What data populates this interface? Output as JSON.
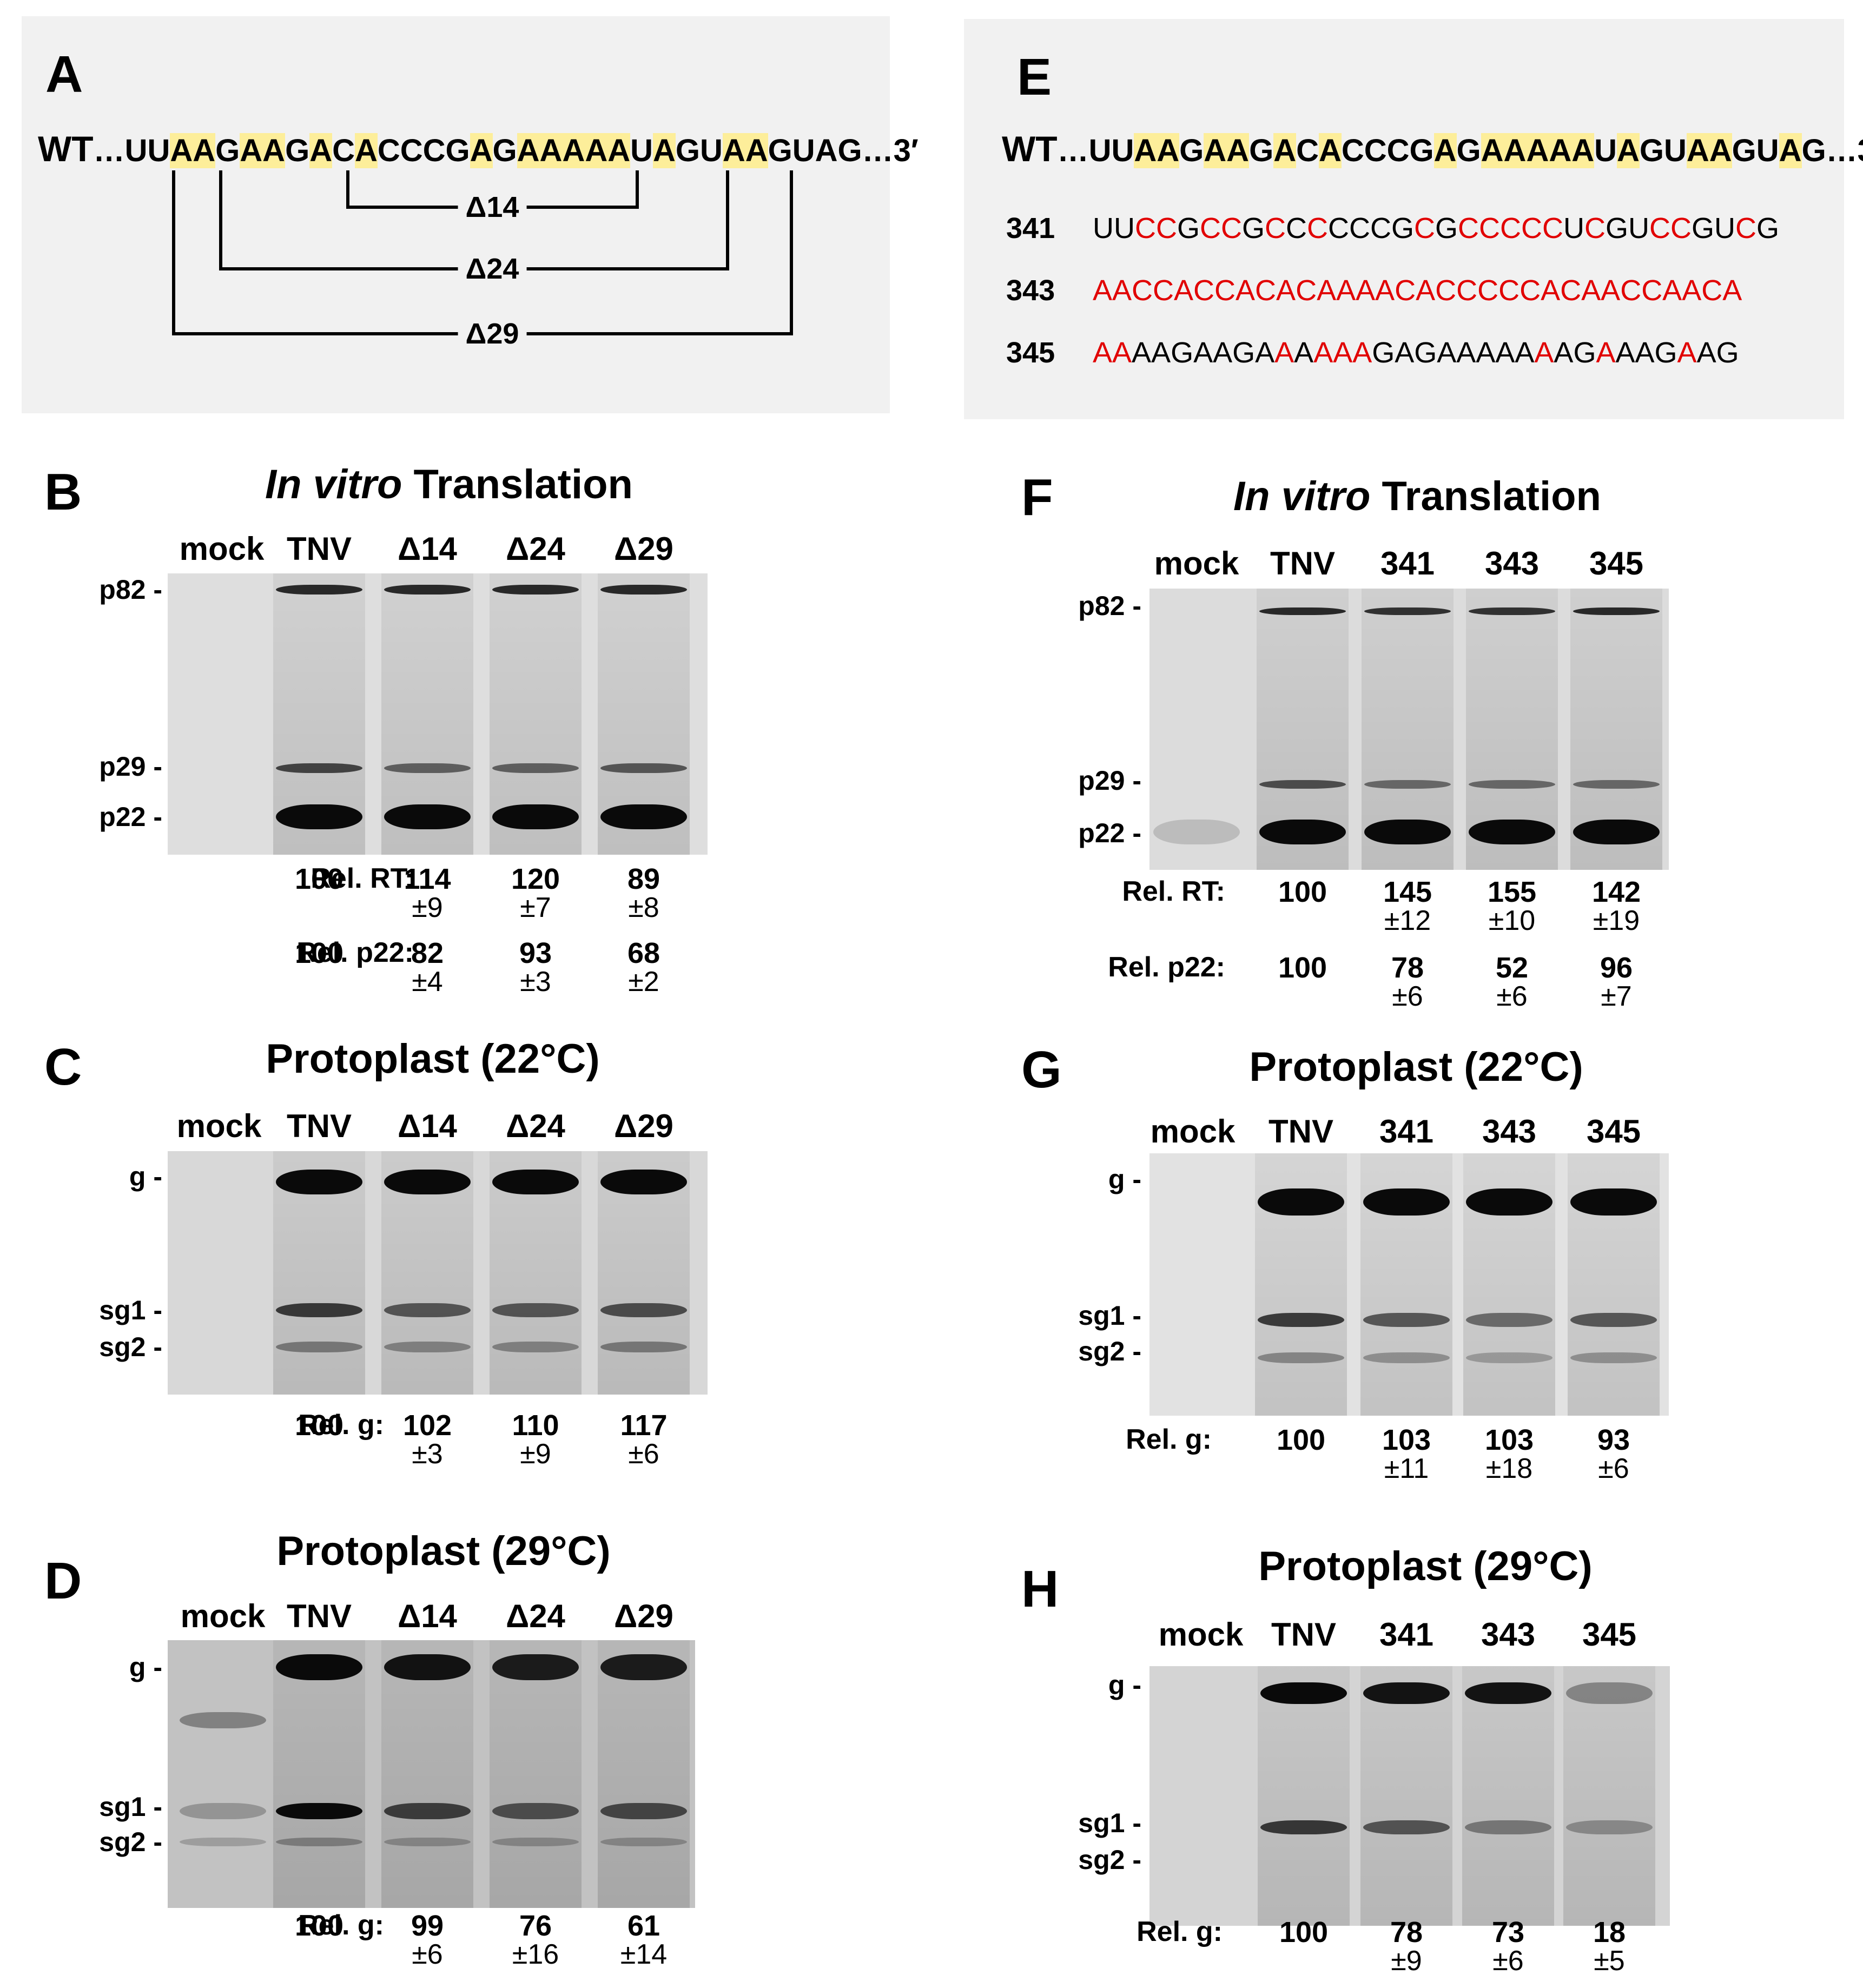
{
  "panel_A": {
    "letter": "A",
    "wt_label": "WT",
    "seq_parts": [
      {
        "t": "…UU",
        "h": false
      },
      {
        "t": "AA",
        "h": true
      },
      {
        "t": "G",
        "h": false
      },
      {
        "t": "AA",
        "h": true
      },
      {
        "t": "G",
        "h": false
      },
      {
        "t": "A",
        "h": true
      },
      {
        "t": "C",
        "h": false
      },
      {
        "t": "A",
        "h": true
      },
      {
        "t": "CCCG",
        "h": false
      },
      {
        "t": "A",
        "h": true
      },
      {
        "t": "G",
        "h": false
      },
      {
        "t": "AAAAA",
        "h": true
      },
      {
        "t": "U",
        "h": false
      },
      {
        "t": "A",
        "h": true
      },
      {
        "t": "GU",
        "h": false
      },
      {
        "t": "AA",
        "h": true
      },
      {
        "t": "GUAG…3′",
        "h": false
      }
    ],
    "deletions": [
      "Δ14",
      "Δ24",
      "Δ29"
    ]
  },
  "panel_E": {
    "letter": "E",
    "wt_label": "WT",
    "seq_parts": [
      {
        "t": "…UU",
        "h": false
      },
      {
        "t": "AA",
        "h": true
      },
      {
        "t": "G",
        "h": false
      },
      {
        "t": "AA",
        "h": true
      },
      {
        "t": "G",
        "h": false
      },
      {
        "t": "A",
        "h": true
      },
      {
        "t": "C",
        "h": false
      },
      {
        "t": "A",
        "h": true
      },
      {
        "t": "CCCG",
        "h": false
      },
      {
        "t": "A",
        "h": true
      },
      {
        "t": "G",
        "h": false
      },
      {
        "t": "AAAAA",
        "h": true
      },
      {
        "t": "U",
        "h": false
      },
      {
        "t": "A",
        "h": true
      },
      {
        "t": "GU",
        "h": false
      },
      {
        "t": "AA",
        "h": true
      },
      {
        "t": "GU",
        "h": false
      },
      {
        "t": "A",
        "h": true
      },
      {
        "t": "G…3′",
        "h": false
      }
    ],
    "mutants": [
      {
        "id": "341",
        "parts": [
          {
            "t": "UU",
            "r": false
          },
          {
            "t": "CC",
            "r": true
          },
          {
            "t": "G",
            "r": false
          },
          {
            "t": "CC",
            "r": true
          },
          {
            "t": "G",
            "r": false
          },
          {
            "t": "C",
            "r": true
          },
          {
            "t": "C",
            "r": false
          },
          {
            "t": "C",
            "r": true
          },
          {
            "t": "CCCG",
            "r": false
          },
          {
            "t": "C",
            "r": true
          },
          {
            "t": "G",
            "r": false
          },
          {
            "t": "CCCCC",
            "r": true
          },
          {
            "t": "U",
            "r": false
          },
          {
            "t": "C",
            "r": true
          },
          {
            "t": "GU",
            "r": false
          },
          {
            "t": "CC",
            "r": true
          },
          {
            "t": "GU",
            "r": false
          },
          {
            "t": "C",
            "r": true
          },
          {
            "t": "G",
            "r": false
          }
        ]
      },
      {
        "id": "343",
        "parts": [
          {
            "t": "AACCACCACACAAAACACCCCCACAACCAACA",
            "r": true
          }
        ]
      },
      {
        "id": "345",
        "parts": [
          {
            "t": "AA",
            "r": true
          },
          {
            "t": "AAGAAGA",
            "r": false
          },
          {
            "t": "A",
            "r": true
          },
          {
            "t": "A",
            "r": false
          },
          {
            "t": "AAA",
            "r": true
          },
          {
            "t": "GAGAAAAA",
            "r": false
          },
          {
            "t": "A",
            "r": true
          },
          {
            "t": "AG",
            "r": false
          },
          {
            "t": "A",
            "r": true
          },
          {
            "t": "AAG",
            "r": false
          },
          {
            "t": "A",
            "r": true
          },
          {
            "t": "AG",
            "r": false
          }
        ]
      }
    ]
  },
  "panel_B": {
    "letter": "B",
    "title_italic": "In vitro",
    "title_rest": " Translation",
    "lanes": [
      "mock",
      "TNV",
      "Δ14",
      "Δ24",
      "Δ29"
    ],
    "markers": [
      "p82 -",
      "p29 -",
      "p22 -"
    ],
    "rows": [
      {
        "label": "Rel. RT:",
        "vals": [
          "100",
          "114",
          "120",
          "89"
        ],
        "sds": [
          "",
          "±9",
          "±7",
          "±8"
        ]
      },
      {
        "label": "Rel. p22:",
        "vals": [
          "100",
          "82",
          "93",
          "68"
        ],
        "sds": [
          "",
          "±4",
          "±3",
          "±2"
        ]
      }
    ]
  },
  "panel_C": {
    "letter": "C",
    "title": "Protoplast (22°C)",
    "lanes": [
      "mock",
      "TNV",
      "Δ14",
      "Δ24",
      "Δ29"
    ],
    "markers": [
      "g -",
      "sg1 -",
      "sg2 -"
    ],
    "rows": [
      {
        "label": "Rel. g:",
        "vals": [
          "100",
          "102",
          "110",
          "117"
        ],
        "sds": [
          "",
          "±3",
          "±9",
          "±6"
        ]
      }
    ]
  },
  "panel_D": {
    "letter": "D",
    "title": "Protoplast (29°C)",
    "lanes": [
      "mock",
      "TNV",
      "Δ14",
      "Δ24",
      "Δ29"
    ],
    "markers": [
      "g -",
      "sg1 -",
      "sg2 -"
    ],
    "rows": [
      {
        "label": "Rel. g:",
        "vals": [
          "100",
          "99",
          "76",
          "61"
        ],
        "sds": [
          "",
          "±6",
          "±16",
          "±14"
        ]
      }
    ]
  },
  "panel_F": {
    "letter": "F",
    "title_italic": "In vitro",
    "title_rest": " Translation",
    "lanes": [
      "mock",
      "TNV",
      "341",
      "343",
      "345"
    ],
    "markers": [
      "p82 -",
      "p29 -",
      "p22 -"
    ],
    "rows": [
      {
        "label": "Rel. RT:",
        "vals": [
          "100",
          "145",
          "155",
          "142"
        ],
        "sds": [
          "",
          "±12",
          "±10",
          "±19"
        ]
      },
      {
        "label": "Rel. p22:",
        "vals": [
          "100",
          "78",
          "52",
          "96"
        ],
        "sds": [
          "",
          "±6",
          "±6",
          "±7"
        ]
      }
    ]
  },
  "panel_G": {
    "letter": "G",
    "title": "Protoplast (22°C)",
    "lanes": [
      "mock",
      "TNV",
      "341",
      "343",
      "345"
    ],
    "markers": [
      "g -",
      "sg1 -",
      "sg2 -"
    ],
    "rows": [
      {
        "label": "Rel. g:",
        "vals": [
          "100",
          "103",
          "103",
          "93"
        ],
        "sds": [
          "",
          "±11",
          "±18",
          "±6"
        ]
      }
    ]
  },
  "panel_H": {
    "letter": "H",
    "title": "Protoplast (29°C)",
    "lanes": [
      "mock",
      "TNV",
      "341",
      "343",
      "345"
    ],
    "markers": [
      "g -",
      "sg1 -",
      "sg2 -"
    ],
    "rows": [
      {
        "label": "Rel. g:",
        "vals": [
          "100",
          "78",
          "73",
          "18"
        ],
        "sds": [
          "",
          "±9",
          "±6",
          "±5"
        ]
      }
    ]
  },
  "colors": {
    "highlight": "#fdee9a",
    "mutation_red": "#e10000",
    "panel_bg": "#f1f1f1",
    "gel_bg": "#d9d9d9"
  }
}
